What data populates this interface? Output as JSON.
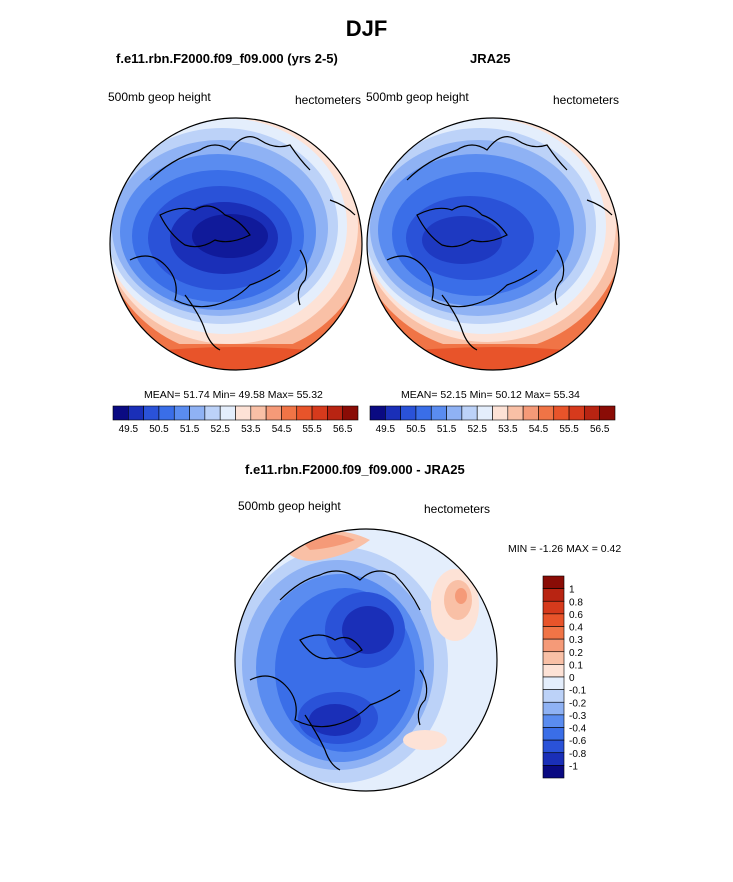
{
  "title": "DJF",
  "panels": {
    "left": {
      "title": "f.e11.rbn.F2000.f09_f09.000 (yrs 2-5)",
      "field_label": "500mb geop height",
      "units": "hectometers",
      "stats": "MEAN=  51.74  Min=  49.58  Max=  55.32"
    },
    "right": {
      "title": "JRA25",
      "field_label": "500mb geop height",
      "units": "hectometers",
      "stats": "MEAN=  52.15  Min=  50.12  Max=  55.34"
    },
    "diff": {
      "title": "f.e11.rbn.F2000.f09_f09.000 - JRA25",
      "field_label": "500mb geop height",
      "units": "hectometers",
      "stats": "MIN =  -1.26 MAX =   0.42"
    }
  },
  "colorbar_h": {
    "labels": [
      "49.5",
      "50.5",
      "51.5",
      "52.5",
      "53.5",
      "54.5",
      "55.5",
      "56.5"
    ],
    "colors": [
      "#0a0a82",
      "#1a2fb8",
      "#2a52d8",
      "#3a6ee8",
      "#5a8cf0",
      "#8fb2f4",
      "#bcd2f8",
      "#e4eefc",
      "#fde2d6",
      "#f9c0a6",
      "#f59a78",
      "#f07446",
      "#e8542a",
      "#d63a1c",
      "#b82412",
      "#8a0c06"
    ]
  },
  "colorbar_v": {
    "labels": [
      "1",
      "0.8",
      "0.6",
      "0.4",
      "0.3",
      "0.2",
      "0.1",
      "0",
      "-0.1",
      "-0.2",
      "-0.3",
      "-0.4",
      "-0.6",
      "-0.8",
      "-1"
    ],
    "colors": [
      "#8a0c06",
      "#b82412",
      "#d63a1c",
      "#e8542a",
      "#f07446",
      "#f59a78",
      "#f9c0a6",
      "#fde2d6",
      "#e4eefc",
      "#bcd2f8",
      "#8fb2f4",
      "#5a8cf0",
      "#3a6ee8",
      "#2a52d8",
      "#1a2fb8",
      "#0a0a82"
    ]
  }
}
